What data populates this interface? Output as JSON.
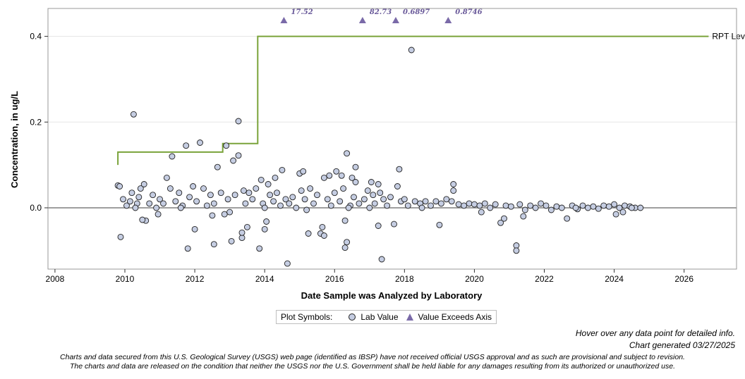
{
  "chart_data": {
    "type": "scatter",
    "xlabel": "Date Sample was Analyzed by Laboratory",
    "ylabel": "Concentration, in ug/L",
    "xlim": [
      2007.8,
      2027.5
    ],
    "ylim": [
      -0.143,
      0.465
    ],
    "x_ticks": [
      2008,
      2010,
      2012,
      2014,
      2016,
      2018,
      2020,
      2022,
      2024,
      2026
    ],
    "y_ticks": [
      0.0,
      0.2,
      0.4
    ],
    "y_tick_labels": [
      "0.0",
      "0.2",
      "0.4"
    ],
    "zero_line": true,
    "grid": "horizontal",
    "rpt_level": {
      "name": "RPT Level",
      "color": "#7aa33a",
      "points": [
        [
          2009.8,
          0.1
        ],
        [
          2009.8,
          0.13
        ],
        [
          2012.8,
          0.13
        ],
        [
          2012.8,
          0.15
        ],
        [
          2013.8,
          0.15
        ],
        [
          2013.8,
          0.4
        ],
        [
          2026.7,
          0.4
        ]
      ]
    },
    "exceeds_axis": [
      {
        "x": 2014.55,
        "label": "17.52"
      },
      {
        "x": 2016.8,
        "label": "82.73"
      },
      {
        "x": 2017.75,
        "label": "0.6897"
      },
      {
        "x": 2019.25,
        "label": "0.8746"
      }
    ],
    "lab_values": [
      [
        2009.8,
        0.052
      ],
      [
        2009.85,
        0.05
      ],
      [
        2009.88,
        -0.068
      ],
      [
        2010.25,
        0.218
      ],
      [
        2013.25,
        0.202
      ],
      [
        2018.2,
        0.368
      ],
      [
        2011.35,
        0.12
      ],
      [
        2011.75,
        0.145
      ],
      [
        2012.15,
        0.152
      ],
      [
        2012.9,
        0.145
      ],
      [
        2013.1,
        0.11
      ],
      [
        2013.25,
        0.122
      ],
      [
        2016.35,
        0.127
      ],
      [
        2016.6,
        0.095
      ],
      [
        2012.65,
        0.095
      ],
      [
        2011.8,
        -0.095
      ],
      [
        2012.0,
        -0.05
      ],
      [
        2012.55,
        -0.085
      ],
      [
        2013.05,
        -0.078
      ],
      [
        2013.35,
        -0.07
      ],
      [
        2013.35,
        -0.058
      ],
      [
        2013.5,
        -0.045
      ],
      [
        2013.85,
        -0.095
      ],
      [
        2014.0,
        -0.05
      ],
      [
        2014.05,
        -0.032
      ],
      [
        2014.65,
        -0.13
      ],
      [
        2015.25,
        -0.06
      ],
      [
        2015.6,
        -0.06
      ],
      [
        2015.7,
        -0.065
      ],
      [
        2015.65,
        -0.045
      ],
      [
        2016.35,
        -0.08
      ],
      [
        2016.3,
        -0.093
      ],
      [
        2016.3,
        -0.03
      ],
      [
        2017.25,
        -0.042
      ],
      [
        2017.35,
        -0.12
      ],
      [
        2017.7,
        -0.038
      ],
      [
        2019.0,
        -0.04
      ],
      [
        2020.75,
        -0.035
      ],
      [
        2020.85,
        -0.025
      ],
      [
        2021.2,
        -0.088
      ],
      [
        2021.2,
        -0.1
      ],
      [
        2022.65,
        -0.025
      ],
      [
        2024.05,
        -0.015
      ],
      [
        2024.25,
        -0.01
      ],
      [
        2014.5,
        0.088
      ],
      [
        2015.0,
        0.08
      ],
      [
        2015.1,
        0.085
      ],
      [
        2015.7,
        0.07
      ],
      [
        2015.85,
        0.075
      ],
      [
        2016.2,
        0.075
      ],
      [
        2016.05,
        0.085
      ],
      [
        2016.5,
        0.07
      ],
      [
        2016.6,
        0.06
      ],
      [
        2017.05,
        0.06
      ],
      [
        2017.25,
        0.055
      ],
      [
        2017.85,
        0.09
      ],
      [
        2017.8,
        0.05
      ],
      [
        2019.4,
        0.055
      ],
      [
        2019.4,
        0.04
      ],
      [
        2014.1,
        0.055
      ],
      [
        2014.3,
        0.07
      ],
      [
        2013.9,
        0.065
      ],
      [
        2011.2,
        0.07
      ],
      [
        2010.55,
        0.055
      ],
      [
        2010.6,
        -0.03
      ],
      [
        2010.5,
        -0.028
      ],
      [
        2010.95,
        -0.015
      ],
      [
        2009.95,
        0.02
      ],
      [
        2010.05,
        0.005
      ],
      [
        2010.15,
        0.015
      ],
      [
        2010.2,
        0.035
      ],
      [
        2010.35,
        0.01
      ],
      [
        2010.4,
        0.025
      ],
      [
        2010.45,
        0.045
      ],
      [
        2010.7,
        0.01
      ],
      [
        2010.8,
        0.03
      ],
      [
        2010.9,
        0.0
      ],
      [
        2011.0,
        0.02
      ],
      [
        2011.1,
        0.01
      ],
      [
        2011.3,
        0.045
      ],
      [
        2011.45,
        0.015
      ],
      [
        2011.55,
        0.035
      ],
      [
        2011.65,
        0.005
      ],
      [
        2011.85,
        0.025
      ],
      [
        2011.95,
        0.05
      ],
      [
        2012.05,
        0.015
      ],
      [
        2012.25,
        0.045
      ],
      [
        2012.35,
        0.005
      ],
      [
        2012.45,
        0.03
      ],
      [
        2012.55,
        0.01
      ],
      [
        2012.75,
        0.035
      ],
      [
        2012.85,
        -0.015
      ],
      [
        2012.95,
        0.02
      ],
      [
        2013.15,
        0.03
      ],
      [
        2013.4,
        0.04
      ],
      [
        2013.45,
        0.01
      ],
      [
        2013.55,
        0.035
      ],
      [
        2013.65,
        0.02
      ],
      [
        2013.75,
        0.045
      ],
      [
        2013.95,
        0.01
      ],
      [
        2014.15,
        0.03
      ],
      [
        2014.25,
        0.015
      ],
      [
        2014.35,
        0.035
      ],
      [
        2014.45,
        0.005
      ],
      [
        2014.6,
        0.02
      ],
      [
        2014.7,
        0.01
      ],
      [
        2014.8,
        0.025
      ],
      [
        2014.9,
        0.0
      ],
      [
        2015.05,
        0.04
      ],
      [
        2015.15,
        0.02
      ],
      [
        2015.3,
        0.045
      ],
      [
        2015.4,
        0.01
      ],
      [
        2015.5,
        0.03
      ],
      [
        2015.8,
        0.02
      ],
      [
        2015.9,
        0.005
      ],
      [
        2016.0,
        0.035
      ],
      [
        2016.15,
        0.015
      ],
      [
        2016.25,
        0.045
      ],
      [
        2016.45,
        0.005
      ],
      [
        2016.55,
        0.025
      ],
      [
        2016.7,
        0.01
      ],
      [
        2016.85,
        0.02
      ],
      [
        2016.95,
        0.04
      ],
      [
        2017.1,
        0.03
      ],
      [
        2017.15,
        0.01
      ],
      [
        2017.3,
        0.035
      ],
      [
        2017.4,
        0.02
      ],
      [
        2017.5,
        0.005
      ],
      [
        2017.6,
        0.025
      ],
      [
        2017.9,
        0.015
      ],
      [
        2018.0,
        0.02
      ],
      [
        2018.1,
        0.005
      ],
      [
        2018.3,
        0.015
      ],
      [
        2018.45,
        0.01
      ],
      [
        2018.6,
        0.015
      ],
      [
        2018.75,
        0.005
      ],
      [
        2018.9,
        0.015
      ],
      [
        2019.05,
        0.01
      ],
      [
        2019.2,
        0.02
      ],
      [
        2019.35,
        0.015
      ],
      [
        2019.55,
        0.008
      ],
      [
        2019.7,
        0.005
      ],
      [
        2019.85,
        0.01
      ],
      [
        2020.0,
        0.008
      ],
      [
        2020.15,
        0.005
      ],
      [
        2020.3,
        0.01
      ],
      [
        2020.45,
        0.0
      ],
      [
        2020.6,
        0.008
      ],
      [
        2020.9,
        0.005
      ],
      [
        2021.05,
        0.003
      ],
      [
        2021.3,
        0.008
      ],
      [
        2021.45,
        -0.005
      ],
      [
        2021.6,
        0.005
      ],
      [
        2021.75,
        0.0
      ],
      [
        2021.9,
        0.01
      ],
      [
        2022.05,
        0.005
      ],
      [
        2022.2,
        -0.005
      ],
      [
        2022.35,
        0.003
      ],
      [
        2022.5,
        0.0
      ],
      [
        2022.8,
        0.005
      ],
      [
        2022.95,
        -0.003
      ],
      [
        2023.1,
        0.005
      ],
      [
        2023.25,
        0.0
      ],
      [
        2023.4,
        0.003
      ],
      [
        2023.55,
        -0.002
      ],
      [
        2023.7,
        0.005
      ],
      [
        2023.85,
        0.003
      ],
      [
        2024.0,
        0.008
      ],
      [
        2024.15,
        0.0
      ],
      [
        2024.3,
        0.005
      ],
      [
        2024.45,
        0.003
      ],
      [
        2024.6,
        0.0
      ],
      [
        2024.75,
        0.0
      ],
      [
        2010.3,
        0.0
      ],
      [
        2011.6,
        0.0
      ],
      [
        2012.5,
        -0.018
      ],
      [
        2013.0,
        -0.01
      ],
      [
        2014.0,
        0.0
      ],
      [
        2015.2,
        -0.005
      ],
      [
        2016.4,
        0.0
      ],
      [
        2017.0,
        0.0
      ],
      [
        2018.5,
        0.0
      ],
      [
        2020.2,
        -0.01
      ],
      [
        2021.4,
        -0.02
      ],
      [
        2022.9,
        0.0
      ],
      [
        2024.5,
        0.0
      ]
    ],
    "legend": {
      "title": "Plot Symbols:",
      "items": [
        "Lab Value",
        "Value Exceeds Axis"
      ]
    }
  },
  "colors": {
    "marker_fill": "#c5cde2",
    "marker_stroke": "#222222",
    "triangle": "#7a6aa8",
    "rpt_line": "#7aa33a",
    "zero_line": "#7f7f7f",
    "grid": "#e6e6e6",
    "frame": "#9a9a9a"
  },
  "notes": {
    "hover": "Hover over any data point for detailed info.",
    "generated": "Chart generated 03/27/2025",
    "disclaimer_1": "Charts and data secured from this U.S. Geological Survey (USGS) web page (identified as IBSP) have not received official USGS approval and as such are provisional and subject to revision.",
    "disclaimer_2": "The charts and data are released on the condition that neither the USGS nor the U.S. Government shall be held liable for any damages resulting from its authorized or unauthorized use."
  }
}
